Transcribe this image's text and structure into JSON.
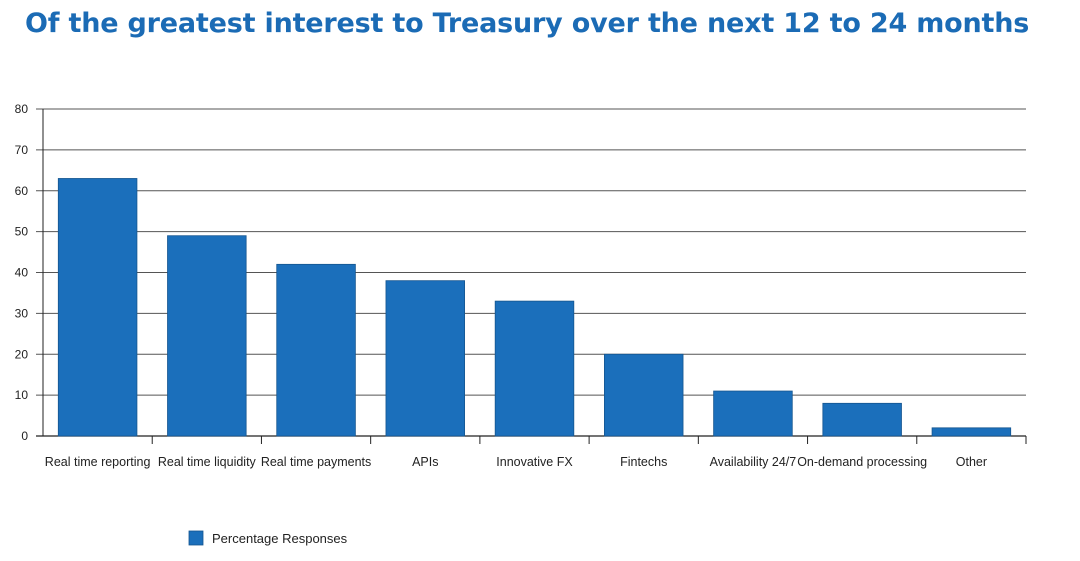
{
  "colors": {
    "title": "#1b6bb5",
    "bar": "#1b6fbb",
    "bar_border": "#15558f",
    "grid": "#555555",
    "axis": "#222222"
  },
  "chart_data": {
    "type": "bar",
    "title": "Of the greatest interest to Treasury over the next 12 to 24 months",
    "xlabel": "",
    "ylabel": "",
    "categories": [
      "Real time reporting",
      "Real time liquidity",
      "Real time payments",
      "APIs",
      "Innovative FX",
      "Fintechs",
      "Availability 24/7",
      "On-demand processing",
      "Other"
    ],
    "series": [
      {
        "name": "Percentage Responses",
        "values": [
          63,
          49,
          42,
          38,
          33,
          20,
          11,
          8,
          2
        ]
      }
    ],
    "ylim": [
      0,
      80
    ],
    "yticks": [
      "0",
      "10",
      "20",
      "30",
      "40",
      "50",
      "60",
      "70",
      "80"
    ],
    "grid": true,
    "legend_position": "bottom-left"
  }
}
